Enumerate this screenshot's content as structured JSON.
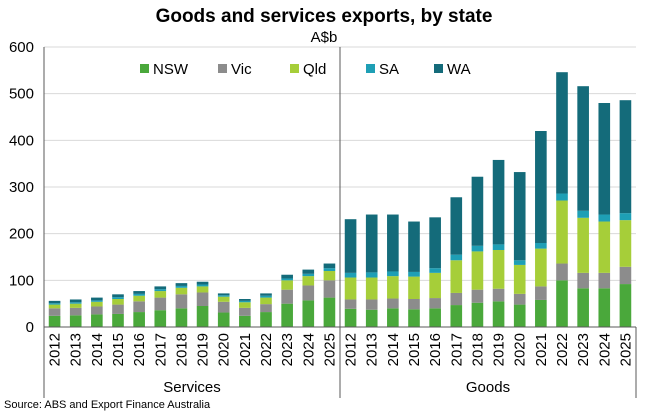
{
  "chart_data": {
    "type": "bar",
    "stacked": true,
    "title": "Goods and services exports, by state",
    "unit_label": "A$b",
    "source": "Source: ABS and Export Finance Australia",
    "ylim": [
      0,
      600
    ],
    "yticks": [
      0,
      100,
      200,
      300,
      400,
      500,
      600
    ],
    "grid": true,
    "legend_position": "top",
    "series_colors": [
      "#4aa83b",
      "#8c8c8c",
      "#a6ce39",
      "#1e9fb5",
      "#146b7a"
    ],
    "groups": [
      {
        "name": "Services",
        "categories": [
          "2012",
          "2013",
          "2014",
          "2015",
          "2016",
          "2017",
          "2018",
          "2019",
          "2020",
          "2021",
          "2022",
          "2023",
          "2024",
          "2025"
        ],
        "series": [
          {
            "name": "NSW",
            "values": [
              24,
              25,
              27,
              28,
              32,
              36,
              40,
              45,
              31,
              24,
              32,
              50,
              57,
              63
            ]
          },
          {
            "name": "Vic",
            "values": [
              16,
              16,
              17,
              20,
              23,
              27,
              30,
              29,
              23,
              17,
              17,
              30,
              32,
              37
            ]
          },
          {
            "name": "Qld",
            "values": [
              8,
              9,
              10,
              12,
              12,
              14,
              14,
              13,
              11,
              12,
              14,
              20,
              20,
              20
            ]
          },
          {
            "name": "SA",
            "values": [
              3,
              3,
              3,
              4,
              4,
              4,
              4,
              4,
              3,
              3,
              4,
              4,
              5,
              6
            ]
          },
          {
            "name": "WA",
            "values": [
              5,
              6,
              6,
              6,
              6,
              6,
              6,
              6,
              4,
              4,
              5,
              8,
              9,
              10
            ]
          }
        ]
      },
      {
        "name": "Goods",
        "categories": [
          "2012",
          "2013",
          "2014",
          "2015",
          "2016",
          "2017",
          "2018",
          "2019",
          "2020",
          "2021",
          "2022",
          "2023",
          "2024",
          "2025"
        ],
        "series": [
          {
            "name": "NSW",
            "values": [
              39,
              37,
              40,
              38,
              40,
              47,
              52,
              55,
              48,
              58,
              100,
              83,
              83,
              92
            ]
          },
          {
            "name": "Vic",
            "values": [
              20,
              22,
              21,
              22,
              22,
              26,
              28,
              27,
              23,
              29,
              36,
              33,
              33,
              37
            ]
          },
          {
            "name": "Qld",
            "values": [
              47,
              47,
              48,
              48,
              54,
              70,
              82,
              83,
              62,
              81,
              135,
              118,
              110,
              100
            ]
          },
          {
            "name": "SA",
            "values": [
              10,
              11,
              10,
              10,
              10,
              12,
              12,
              12,
              10,
              12,
              15,
              15,
              15,
              15
            ]
          },
          {
            "name": "WA",
            "values": [
              115,
              124,
              122,
              108,
              109,
              123,
              148,
              181,
              189,
              240,
              260,
              267,
              239,
              242
            ]
          }
        ]
      }
    ]
  }
}
